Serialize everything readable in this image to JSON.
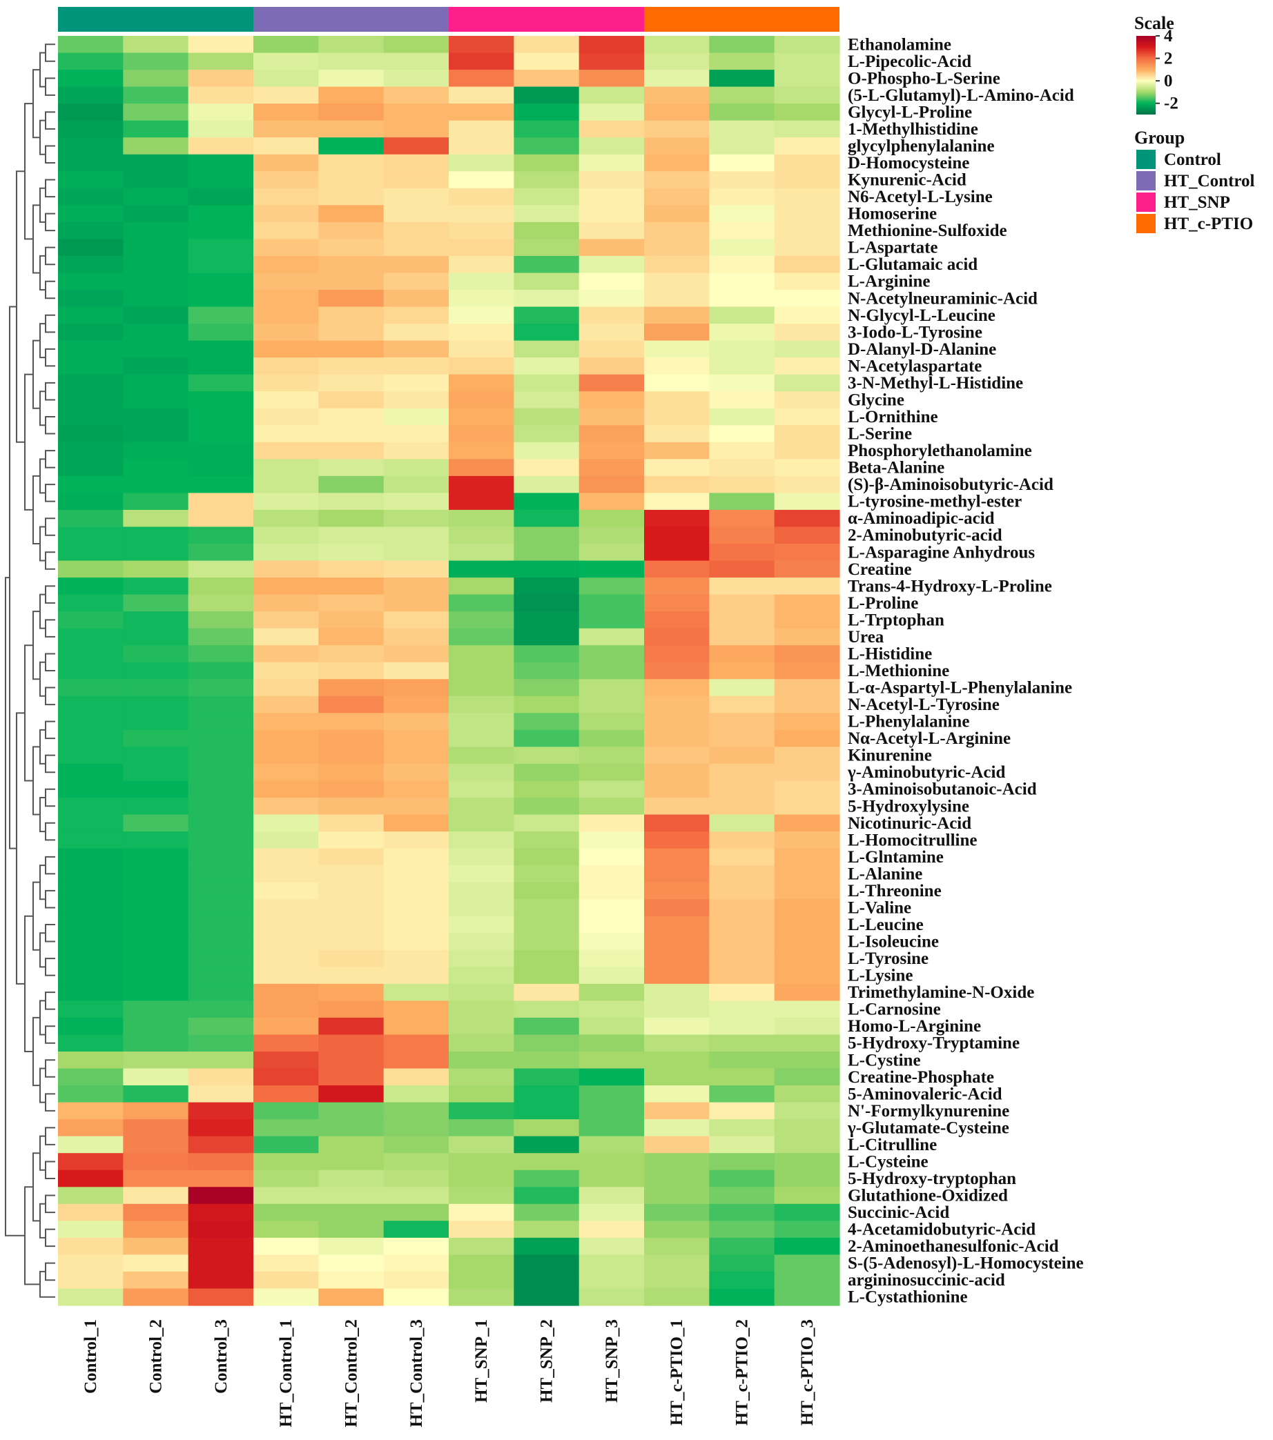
{
  "chart_data": {
    "type": "heatmap",
    "title": "",
    "xlabel": "",
    "ylabel": "",
    "columns": [
      "Control_1",
      "Control_2",
      "Control_3",
      "HT_Control_1",
      "HT_Control_2",
      "HT_Control_3",
      "HT_SNP_1",
      "HT_SNP_2",
      "HT_SNP_3",
      "HT_c-PTIO_1",
      "HT_c-PTIO_2",
      "HT_c-PTIO_3"
    ],
    "column_groups": [
      "Control",
      "Control",
      "Control",
      "HT_Control",
      "HT_Control",
      "HT_Control",
      "HT_SNP",
      "HT_SNP",
      "HT_SNP",
      "HT_c-PTIO",
      "HT_c-PTIO",
      "HT_c-PTIO"
    ],
    "rows": [
      "Ethanolamine",
      "L-Pipecolic-Acid",
      "O-Phospho-L-Serine",
      "(5-L-Glutamyl)-L-Amino-Acid",
      "Glycyl-L-Proline",
      "1-Methylhistidine",
      "glycylphenylalanine",
      "D-Homocysteine",
      "Kynurenic-Acid",
      "N6-Acetyl-L-Lysine",
      "Homoserine",
      "Methionine-Sulfoxide",
      "L-Aspartate",
      "L-Glutamaic acid",
      "L-Arginine",
      "N-Acetylneuraminic-Acid",
      "N-Glycyl-L-Leucine",
      "3-Iodo-L-Tyrosine",
      "D-Alanyl-D-Alanine",
      "N-Acetylaspartate",
      "3-N-Methyl-L-Histidine",
      "Glycine",
      "L-Ornithine",
      "L-Serine",
      "Phosphorylethanolamine",
      "Beta-Alanine",
      "(S)-β-Aminoisobutyric-Acid",
      "L-tyrosine-methyl-ester",
      "α-Aminoadipic-acid",
      "2-Aminobutyric-acid",
      "L-Asparagine Anhydrous",
      "Creatine",
      "Trans-4-Hydroxy-L-Proline",
      "L-Proline",
      "L-Trptophan",
      "Urea",
      "L-Histidine",
      "L-Methionine",
      "L-α-Aspartyl-L-Phenylalanine",
      "N-Acetyl-L-Tyrosine",
      "L-Phenylalanine",
      "Nα-Acetyl-L-Arginine",
      "Kinurenine",
      "γ-Aminobutyric-Acid",
      "3-Aminoisobutanoic-Acid",
      "5-Hydroxylysine",
      "Nicotinuric-Acid",
      "L-Homocitrulline",
      "L-Glntamine",
      "L-Alanine",
      "L-Threonine",
      "L-Valine",
      "L-Leucine",
      "L-Isoleucine",
      "L-Tyrosine",
      "L-Lysine",
      "Trimethylamine-N-Oxide",
      "L-Carnosine",
      "Homo-L-Arginine",
      "5-Hydroxy-Tryptamine",
      "L-Cystine",
      "Creatine-Phosphate",
      "5-Aminovaleric-Acid",
      "N'-Formylkynurenine",
      "γ-Glutamate-Cysteine",
      "L-Citrulline",
      "L-Cysteine",
      "5-Hydroxy-tryptophan",
      "Glutathione-Oxidized",
      "Succinic-Acid",
      "4-Acetamidobutyric-Acid",
      "2-Aminoethanesulfonic-Acid",
      "S-(5-Adenosyl)-L-Homocysteine",
      "argininosuccinic-acid",
      "L-Cystathionine"
    ],
    "values": [
      [
        -1.4,
        -0.8,
        0.2,
        -1.1,
        -0.8,
        -1.0,
        2.4,
        0.4,
        2.6,
        -0.6,
        -1.2,
        -0.7
      ],
      [
        -1.8,
        -1.4,
        -0.9,
        -0.4,
        -0.5,
        -0.5,
        2.6,
        0.2,
        2.5,
        -0.5,
        -0.9,
        -0.6
      ],
      [
        -2.0,
        -1.2,
        0.6,
        -0.5,
        -0.2,
        -0.4,
        1.8,
        0.7,
        1.5,
        -0.3,
        -2.3,
        -0.6
      ],
      [
        -2.2,
        -1.6,
        0.4,
        0.3,
        1.0,
        0.7,
        0.3,
        -2.4,
        -0.6,
        0.8,
        -0.9,
        -0.7
      ],
      [
        -2.4,
        -1.3,
        -0.2,
        1.0,
        1.2,
        0.9,
        0.9,
        -2.1,
        -0.3,
        0.9,
        -1.1,
        -1.0
      ],
      [
        -2.3,
        -1.8,
        -0.3,
        0.8,
        0.8,
        0.9,
        0.3,
        -1.8,
        0.5,
        0.6,
        -0.4,
        -0.5
      ],
      [
        -2.2,
        -1.1,
        0.4,
        0.3,
        -2.0,
        2.3,
        0.3,
        -1.6,
        -0.5,
        0.8,
        -0.4,
        0.2
      ],
      [
        -2.2,
        -2.2,
        -2.1,
        0.8,
        0.4,
        0.5,
        -0.4,
        -1.0,
        -0.2,
        0.9,
        0.0,
        0.4
      ],
      [
        -2.1,
        -2.2,
        -2.1,
        0.6,
        0.4,
        0.5,
        0.0,
        -0.8,
        0.3,
        0.6,
        0.3,
        0.4
      ],
      [
        -2.2,
        -2.1,
        -2.2,
        0.5,
        0.4,
        0.3,
        0.4,
        -0.6,
        0.2,
        0.7,
        0.2,
        0.3
      ],
      [
        -2.1,
        -2.2,
        -2.0,
        0.6,
        1.0,
        0.3,
        0.3,
        -0.4,
        0.2,
        0.8,
        -0.1,
        0.3
      ],
      [
        -2.2,
        -2.1,
        -2.0,
        0.5,
        0.7,
        0.5,
        0.4,
        -1.0,
        0.3,
        0.6,
        0.1,
        0.3
      ],
      [
        -2.4,
        -2.1,
        -1.9,
        0.7,
        0.6,
        0.5,
        0.5,
        -0.9,
        0.8,
        0.6,
        -0.2,
        0.3
      ],
      [
        -2.2,
        -2.1,
        -1.9,
        0.9,
        0.8,
        0.8,
        0.3,
        -1.6,
        -0.3,
        0.5,
        0.1,
        0.5
      ],
      [
        -2.1,
        -2.1,
        -2.0,
        0.8,
        0.8,
        0.6,
        -0.3,
        -0.7,
        0.0,
        0.3,
        0.0,
        0.2
      ],
      [
        -2.2,
        -2.1,
        -2.0,
        0.9,
        1.3,
        0.8,
        -0.2,
        -0.3,
        -0.1,
        0.3,
        0.0,
        0.0
      ],
      [
        -2.1,
        -2.2,
        -1.6,
        0.9,
        0.6,
        0.5,
        -0.1,
        -1.8,
        0.4,
        0.8,
        -0.6,
        0.1
      ],
      [
        -2.2,
        -2.1,
        -1.7,
        0.8,
        0.6,
        0.3,
        0.2,
        -1.9,
        0.3,
        1.2,
        -0.2,
        0.3
      ],
      [
        -2.1,
        -2.1,
        -2.1,
        1.0,
        1.0,
        0.8,
        0.3,
        -0.7,
        0.4,
        -0.2,
        -0.3,
        -0.4
      ],
      [
        -2.1,
        -2.2,
        -2.1,
        0.5,
        0.4,
        0.4,
        0.5,
        -0.3,
        0.6,
        0.1,
        -0.3,
        0.2
      ],
      [
        -2.2,
        -2.1,
        -1.8,
        0.4,
        0.3,
        0.2,
        1.0,
        -0.6,
        1.7,
        0.0,
        -0.1,
        -0.5
      ],
      [
        -2.2,
        -2.1,
        -2.0,
        0.2,
        0.5,
        0.3,
        1.1,
        -0.5,
        0.9,
        0.4,
        0.1,
        0.3
      ],
      [
        -2.2,
        -2.2,
        -2.0,
        0.3,
        0.2,
        -0.2,
        1.0,
        -0.8,
        0.8,
        0.4,
        -0.3,
        0.2
      ],
      [
        -2.3,
        -2.2,
        -2.0,
        0.2,
        0.2,
        0.2,
        1.1,
        -0.7,
        1.2,
        0.3,
        0.0,
        0.4
      ],
      [
        -2.2,
        -2.1,
        -2.1,
        0.5,
        0.5,
        0.3,
        1.0,
        -0.3,
        1.1,
        0.8,
        0.2,
        0.4
      ],
      [
        -2.2,
        -2.0,
        -2.1,
        -0.6,
        -0.5,
        -0.6,
        1.5,
        0.2,
        1.3,
        0.2,
        0.3,
        0.2
      ],
      [
        -2.0,
        -2.0,
        -2.0,
        -0.6,
        -1.2,
        -0.7,
        2.9,
        -0.4,
        1.4,
        0.5,
        0.4,
        0.3
      ],
      [
        -2.1,
        -1.8,
        0.5,
        -0.4,
        -0.5,
        -0.4,
        2.9,
        -2.0,
        0.9,
        0.1,
        -1.2,
        -0.2
      ],
      [
        -1.8,
        -0.8,
        0.5,
        -0.8,
        -1.0,
        -0.8,
        -0.9,
        -1.9,
        -1.0,
        2.9,
        1.6,
        2.5
      ],
      [
        -1.9,
        -1.9,
        -1.8,
        -0.6,
        -0.5,
        -0.5,
        -0.8,
        -1.2,
        -0.9,
        3.0,
        1.7,
        2.1
      ],
      [
        -1.9,
        -1.9,
        -1.7,
        -0.5,
        -0.4,
        -0.5,
        -0.7,
        -1.2,
        -0.8,
        3.0,
        1.9,
        1.8
      ],
      [
        -1.1,
        -1.0,
        -0.6,
        0.6,
        0.5,
        0.4,
        -2.1,
        -2.1,
        -2.0,
        1.9,
        2.1,
        1.7
      ],
      [
        -2.0,
        -1.9,
        -1.0,
        1.0,
        1.0,
        0.8,
        -1.0,
        -2.4,
        -1.4,
        1.5,
        0.4,
        0.4
      ],
      [
        -1.9,
        -1.6,
        -0.9,
        0.8,
        0.7,
        0.8,
        -1.5,
        -2.5,
        -1.6,
        1.6,
        0.6,
        0.9
      ],
      [
        -1.8,
        -1.9,
        -1.2,
        0.6,
        0.8,
        0.5,
        -1.3,
        -2.4,
        -1.6,
        1.8,
        0.6,
        0.9
      ],
      [
        -1.9,
        -1.9,
        -1.4,
        0.3,
        0.9,
        0.6,
        -1.4,
        -2.4,
        -0.6,
        1.9,
        0.6,
        0.8
      ],
      [
        -1.9,
        -1.8,
        -1.6,
        0.7,
        0.6,
        0.7,
        -1.0,
        -1.5,
        -1.2,
        1.8,
        1.1,
        1.4
      ],
      [
        -1.9,
        -1.9,
        -1.8,
        0.4,
        0.5,
        0.3,
        -1.0,
        -1.4,
        -1.2,
        1.7,
        1.0,
        1.3
      ],
      [
        -1.8,
        -1.8,
        -1.7,
        0.5,
        1.3,
        1.2,
        -1.0,
        -1.2,
        -0.8,
        0.9,
        -0.3,
        0.7
      ],
      [
        -1.9,
        -1.9,
        -1.8,
        0.7,
        1.6,
        1.1,
        -0.8,
        -1.0,
        -0.8,
        0.8,
        0.5,
        0.7
      ],
      [
        -1.9,
        -1.9,
        -1.8,
        0.9,
        0.9,
        0.8,
        -0.7,
        -1.4,
        -0.9,
        0.8,
        0.7,
        0.9
      ],
      [
        -1.9,
        -1.8,
        -1.8,
        1.0,
        1.1,
        0.9,
        -0.7,
        -1.6,
        -1.1,
        0.8,
        0.7,
        1.0
      ],
      [
        -1.9,
        -1.9,
        -1.8,
        1.0,
        1.1,
        0.9,
        -0.9,
        -0.8,
        -0.9,
        0.7,
        0.8,
        0.6
      ],
      [
        -2.0,
        -1.9,
        -1.8,
        0.9,
        1.0,
        0.8,
        -0.7,
        -1.1,
        -1.0,
        0.8,
        0.6,
        0.6
      ],
      [
        -2.0,
        -2.0,
        -1.8,
        1.0,
        1.1,
        0.9,
        -0.6,
        -1.0,
        -0.7,
        0.8,
        0.6,
        0.5
      ],
      [
        -1.9,
        -1.9,
        -1.8,
        0.7,
        0.8,
        0.8,
        -0.8,
        -1.1,
        -0.9,
        0.6,
        0.6,
        0.5
      ],
      [
        -1.9,
        -1.6,
        -1.8,
        -0.3,
        0.4,
        1.0,
        -0.8,
        -0.6,
        0.2,
        2.2,
        -0.5,
        1.1
      ],
      [
        -1.9,
        -1.9,
        -1.8,
        -0.4,
        0.2,
        0.3,
        -0.5,
        -0.9,
        -0.1,
        2.0,
        0.6,
        0.8
      ],
      [
        -2.1,
        -2.0,
        -1.8,
        0.3,
        0.4,
        0.2,
        -0.4,
        -1.0,
        0.0,
        1.6,
        0.5,
        0.9
      ],
      [
        -2.1,
        -2.0,
        -1.8,
        0.3,
        0.3,
        0.2,
        -0.3,
        -0.9,
        0.1,
        1.6,
        0.6,
        0.9
      ],
      [
        -2.1,
        -2.0,
        -1.8,
        0.2,
        0.3,
        0.2,
        -0.4,
        -1.0,
        0.1,
        1.5,
        0.6,
        0.9
      ],
      [
        -2.1,
        -2.0,
        -1.8,
        0.3,
        0.3,
        0.2,
        -0.4,
        -0.9,
        0.0,
        1.7,
        0.7,
        1.0
      ],
      [
        -2.1,
        -2.0,
        -1.8,
        0.3,
        0.3,
        0.2,
        -0.3,
        -0.9,
        0.0,
        1.5,
        0.7,
        1.0
      ],
      [
        -2.1,
        -2.0,
        -1.8,
        0.3,
        0.3,
        0.2,
        -0.4,
        -0.9,
        -0.1,
        1.5,
        0.7,
        1.0
      ],
      [
        -2.1,
        -2.0,
        -1.8,
        0.3,
        0.4,
        0.3,
        -0.5,
        -1.0,
        -0.2,
        1.5,
        0.7,
        1.0
      ],
      [
        -2.1,
        -2.0,
        -1.8,
        0.3,
        0.3,
        0.3,
        -0.6,
        -1.0,
        -0.3,
        1.5,
        0.7,
        1.0
      ],
      [
        -2.1,
        -2.0,
        -1.8,
        1.2,
        1.1,
        -0.6,
        -0.7,
        0.3,
        -0.9,
        -0.4,
        0.2,
        1.1
      ],
      [
        -1.9,
        -1.7,
        -1.7,
        1.2,
        1.3,
        1.0,
        -0.8,
        -0.7,
        -0.6,
        -0.4,
        -0.3,
        -0.3
      ],
      [
        -2.0,
        -1.7,
        -1.5,
        1.1,
        2.7,
        1.0,
        -0.8,
        -1.5,
        -0.7,
        -0.2,
        -0.3,
        -0.4
      ],
      [
        -1.9,
        -1.7,
        -1.6,
        1.9,
        2.1,
        1.8,
        -0.9,
        -1.2,
        -1.1,
        -0.8,
        -0.9,
        -0.9
      ],
      [
        -1.0,
        -0.9,
        -0.9,
        2.4,
        2.1,
        1.8,
        -1.1,
        -1.1,
        -1.0,
        -1.0,
        -1.1,
        -1.1
      ],
      [
        -1.4,
        -0.3,
        0.4,
        2.5,
        2.1,
        0.4,
        -0.9,
        -1.8,
        -2.0,
        -1.0,
        -1.0,
        -1.2
      ],
      [
        -1.5,
        -1.8,
        0.3,
        2.0,
        3.1,
        -0.6,
        -1.0,
        -1.9,
        -1.5,
        -0.2,
        -1.4,
        -0.9
      ],
      [
        0.9,
        1.2,
        2.8,
        -1.5,
        -1.3,
        -1.2,
        -1.8,
        -1.9,
        -1.5,
        0.7,
        0.2,
        -0.7
      ],
      [
        1.2,
        1.7,
        2.9,
        -1.3,
        -1.3,
        -1.2,
        -1.3,
        -1.0,
        -1.5,
        -0.3,
        -0.6,
        -0.8
      ],
      [
        -0.3,
        1.7,
        2.5,
        -1.7,
        -1.0,
        -1.1,
        -0.8,
        -2.3,
        -0.9,
        0.6,
        -0.4,
        -0.8
      ],
      [
        2.6,
        1.8,
        1.9,
        -1.0,
        -1.0,
        -0.9,
        -1.0,
        -1.0,
        -1.0,
        -1.1,
        -1.2,
        -1.1
      ],
      [
        3.0,
        1.6,
        1.6,
        -0.9,
        -0.7,
        -0.8,
        -1.0,
        -1.5,
        -1.0,
        -1.1,
        -1.5,
        -1.1
      ],
      [
        -0.8,
        0.3,
        3.9,
        -0.6,
        -0.6,
        -0.6,
        -0.9,
        -1.8,
        -0.5,
        -1.1,
        -1.3,
        -1.0
      ],
      [
        0.5,
        1.6,
        3.1,
        -1.1,
        -1.1,
        -1.1,
        0.1,
        -1.3,
        -0.3,
        -1.3,
        -1.6,
        -1.8
      ],
      [
        -0.3,
        1.3,
        3.2,
        -1.0,
        -1.1,
        -1.9,
        0.3,
        -0.9,
        0.2,
        -1.1,
        -1.4,
        -1.6
      ],
      [
        0.4,
        0.8,
        3.1,
        0.0,
        -0.2,
        0.0,
        -0.8,
        -2.3,
        -0.4,
        -0.9,
        -1.7,
        -2.0
      ],
      [
        0.3,
        0.2,
        3.1,
        0.2,
        0.0,
        0.1,
        -1.0,
        -2.6,
        -0.6,
        -0.8,
        -1.8,
        -1.4
      ],
      [
        0.3,
        0.7,
        3.1,
        0.4,
        0.1,
        0.2,
        -1.0,
        -2.6,
        -0.6,
        -0.8,
        -1.9,
        -1.4
      ],
      [
        -0.5,
        1.3,
        2.2,
        -0.1,
        1.0,
        0.0,
        -0.9,
        -2.6,
        -0.7,
        -0.9,
        -2.0,
        -1.4
      ]
    ],
    "value_range": [
      -3,
      4
    ],
    "legend": {
      "scale_title": "Scale",
      "scale_ticks": [
        "4",
        "2",
        "0",
        "-2"
      ],
      "scale_tick_values": [
        4,
        2,
        0,
        -2
      ],
      "group_title": "Group",
      "groups": [
        {
          "name": "Control",
          "color": "#00957a"
        },
        {
          "name": "HT_Control",
          "color": "#7d6bb5"
        },
        {
          "name": "HT_SNP",
          "color": "#ff1f8c"
        },
        {
          "name": "HT_c-PTIO",
          "color": "#ff6a00"
        }
      ],
      "placement": "right"
    },
    "colormap": [
      "#00734a",
      "#00b35a",
      "#a6d96a",
      "#ffffbf",
      "#fdae61",
      "#f46d43",
      "#d7191c",
      "#a50026"
    ],
    "dendrogram": "left"
  }
}
